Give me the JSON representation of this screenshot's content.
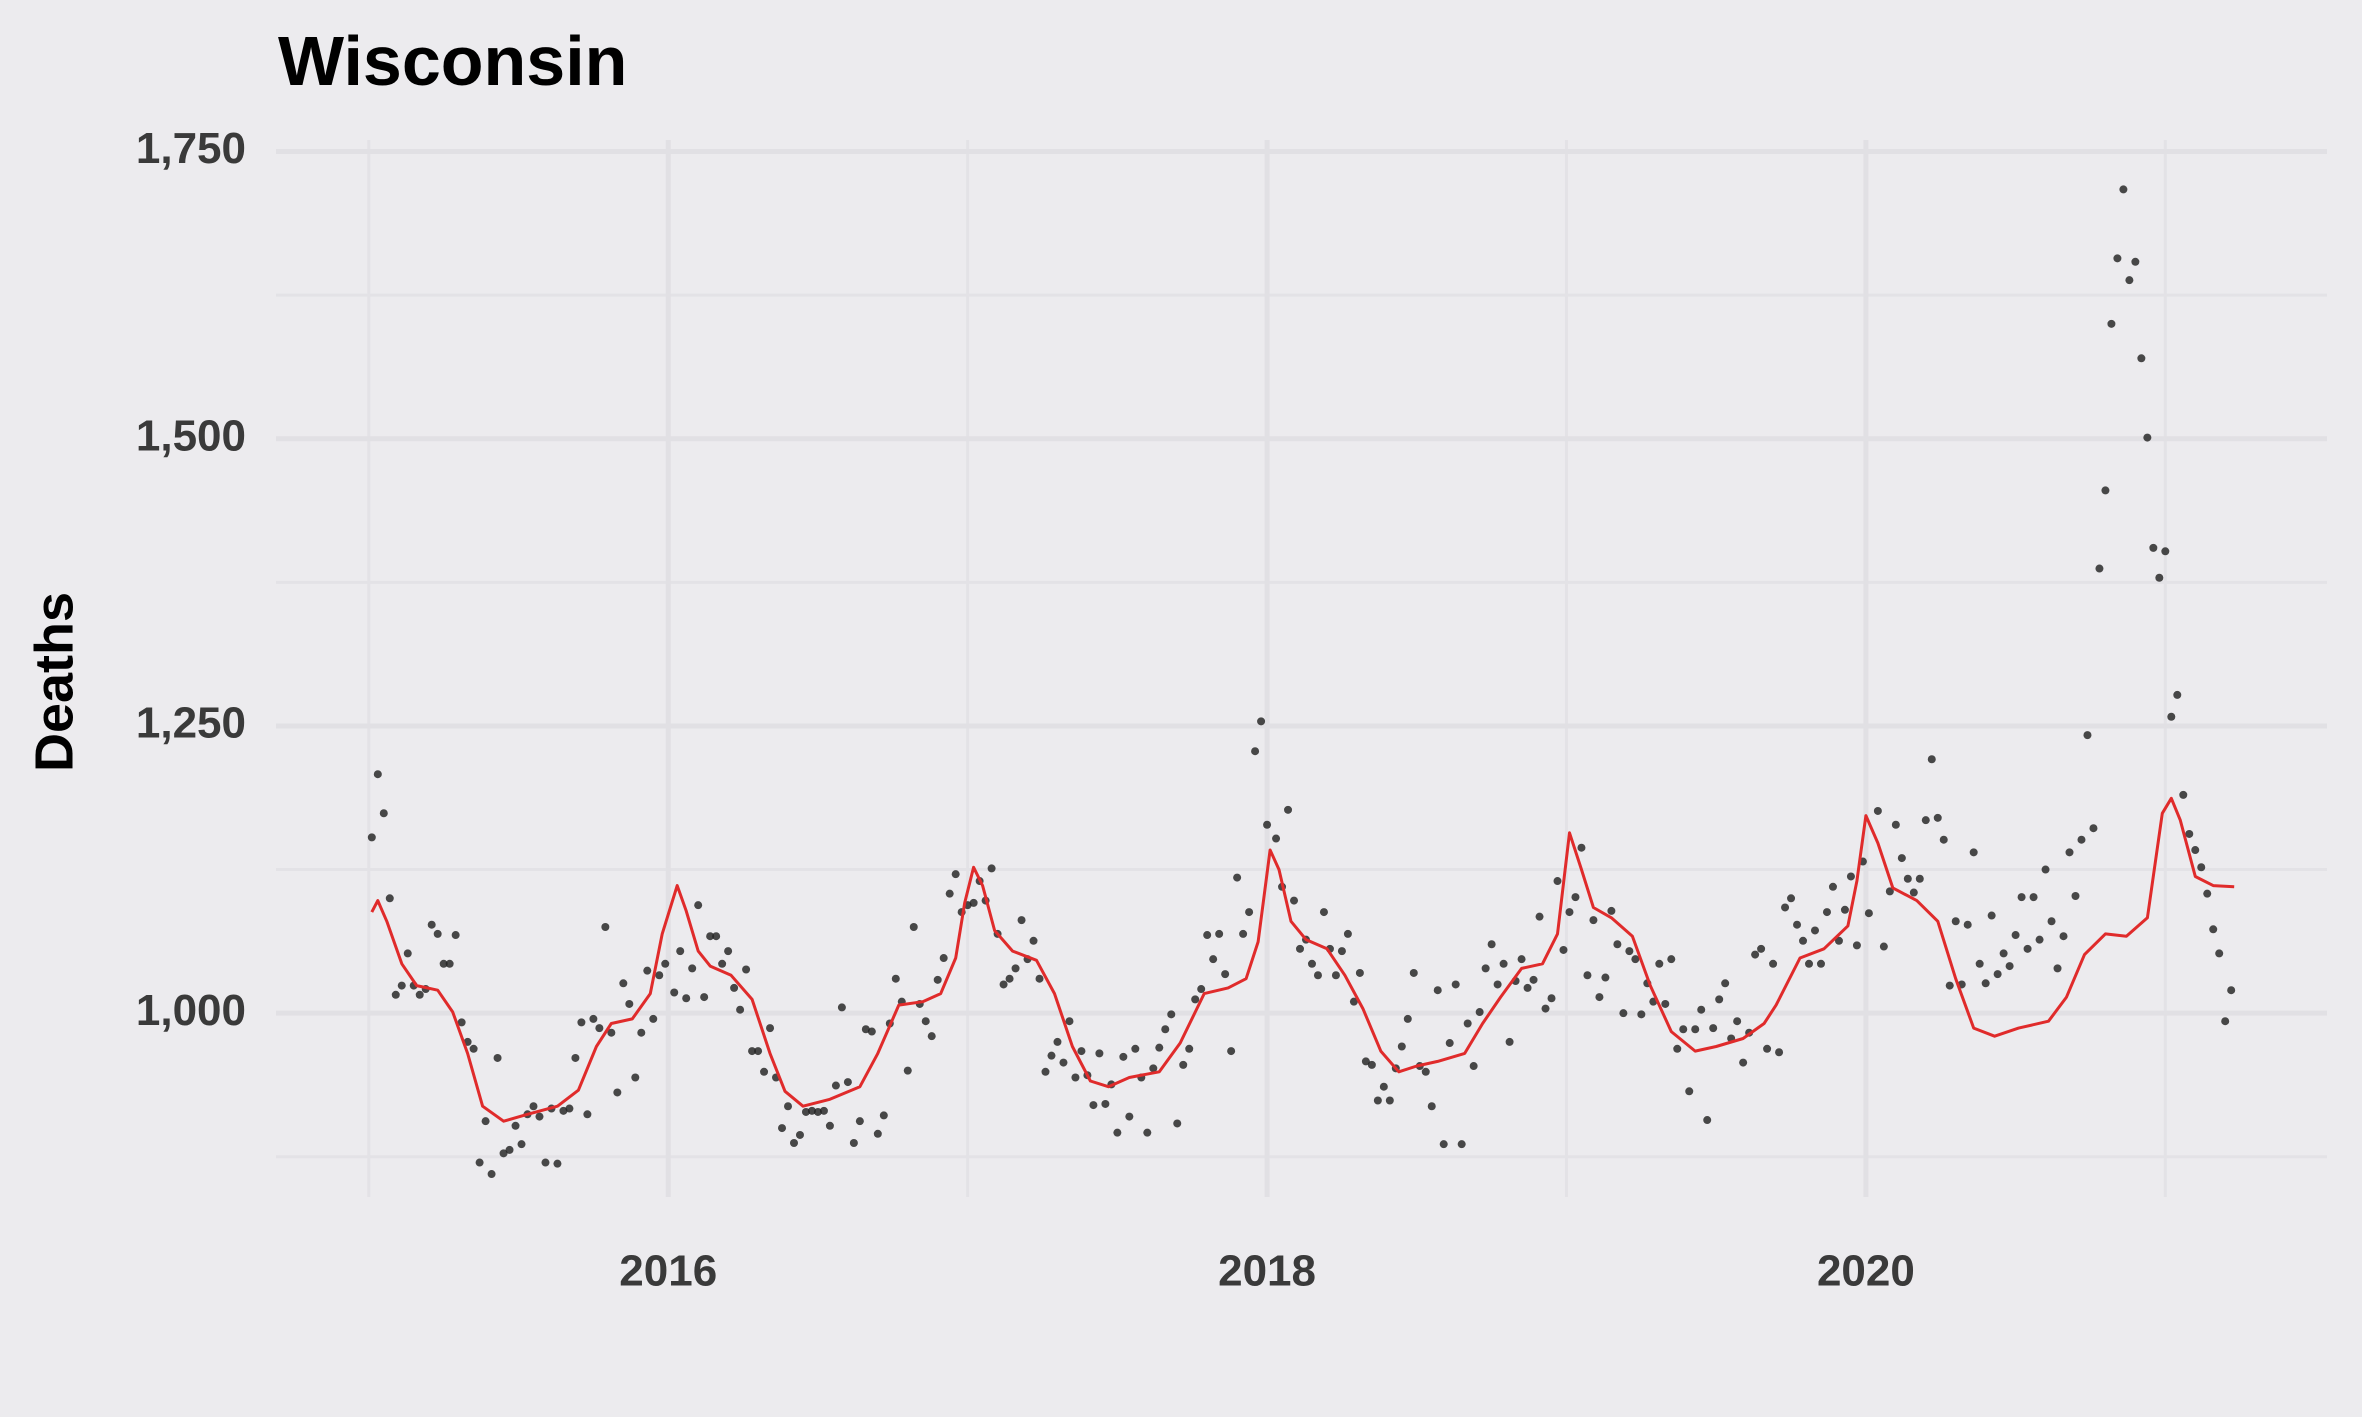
{
  "chart_data": {
    "type": "scatter",
    "title": "Wisconsin",
    "ylabel": "Deaths",
    "grid": true,
    "xlim": [
      2014.69,
      2021.54
    ],
    "xticks": [
      2016,
      2018,
      2020
    ],
    "ylim": [
      840,
      1760
    ],
    "yticks": [
      {
        "value": 1000,
        "label": "1,000"
      },
      {
        "value": 1250,
        "label": "1,250"
      },
      {
        "value": 1500,
        "label": "1,500"
      },
      {
        "value": 1750,
        "label": "1,750"
      }
    ],
    "series": [
      {
        "type": "scatter",
        "color": "#222222",
        "x": [
          2015.01,
          2015.03,
          2015.05,
          2015.07,
          2015.09,
          2015.11,
          2015.13,
          2015.15,
          2015.17,
          2015.19,
          2015.21,
          2015.23,
          2015.25,
          2015.27,
          2015.29,
          2015.31,
          2015.33,
          2015.35,
          2015.37,
          2015.39,
          2015.41,
          2015.43,
          2015.45,
          2015.47,
          2015.49,
          2015.51,
          2015.53,
          2015.55,
          2015.57,
          2015.59,
          2015.61,
          2015.63,
          2015.65,
          2015.67,
          2015.69,
          2015.71,
          2015.73,
          2015.75,
          2015.77,
          2015.79,
          2015.81,
          2015.83,
          2015.85,
          2015.87,
          2015.89,
          2015.91,
          2015.93,
          2015.95,
          2015.97,
          2015.99,
          2016.02,
          2016.04,
          2016.06,
          2016.08,
          2016.1,
          2016.12,
          2016.14,
          2016.16,
          2016.18,
          2016.2,
          2016.22,
          2016.24,
          2016.26,
          2016.28,
          2016.3,
          2016.32,
          2016.34,
          2016.36,
          2016.38,
          2016.4,
          2016.42,
          2016.44,
          2016.46,
          2016.48,
          2016.5,
          2016.52,
          2016.54,
          2016.56,
          2016.58,
          2016.6,
          2016.62,
          2016.64,
          2016.66,
          2016.68,
          2016.7,
          2016.72,
          2016.74,
          2016.76,
          2016.78,
          2016.8,
          2016.82,
          2016.84,
          2016.86,
          2016.88,
          2016.9,
          2016.92,
          2016.94,
          2016.96,
          2016.98,
          2017.0,
          2017.02,
          2017.04,
          2017.06,
          2017.08,
          2017.1,
          2017.12,
          2017.14,
          2017.16,
          2017.18,
          2017.2,
          2017.22,
          2017.24,
          2017.26,
          2017.28,
          2017.3,
          2017.32,
          2017.34,
          2017.36,
          2017.38,
          2017.4,
          2017.42,
          2017.44,
          2017.46,
          2017.48,
          2017.5,
          2017.52,
          2017.54,
          2017.56,
          2017.58,
          2017.6,
          2017.62,
          2017.64,
          2017.66,
          2017.68,
          2017.7,
          2017.72,
          2017.74,
          2017.76,
          2017.78,
          2017.8,
          2017.82,
          2017.84,
          2017.86,
          2017.88,
          2017.9,
          2017.92,
          2017.94,
          2017.96,
          2017.98,
          2018.0,
          2018.03,
          2018.05,
          2018.07,
          2018.09,
          2018.11,
          2018.13,
          2018.15,
          2018.17,
          2018.19,
          2018.21,
          2018.23,
          2018.25,
          2018.27,
          2018.29,
          2018.31,
          2018.33,
          2018.35,
          2018.37,
          2018.39,
          2018.41,
          2018.43,
          2018.45,
          2018.47,
          2018.49,
          2018.51,
          2018.53,
          2018.55,
          2018.57,
          2018.59,
          2018.61,
          2018.63,
          2018.65,
          2018.67,
          2018.69,
          2018.71,
          2018.73,
          2018.75,
          2018.77,
          2018.79,
          2018.81,
          2018.83,
          2018.85,
          2018.87,
          2018.89,
          2018.91,
          2018.93,
          2018.95,
          2018.97,
          2018.99,
          2019.01,
          2019.03,
          2019.05,
          2019.07,
          2019.09,
          2019.11,
          2019.13,
          2019.15,
          2019.17,
          2019.19,
          2019.21,
          2019.23,
          2019.25,
          2019.27,
          2019.29,
          2019.31,
          2019.33,
          2019.35,
          2019.37,
          2019.39,
          2019.41,
          2019.43,
          2019.45,
          2019.47,
          2019.49,
          2019.51,
          2019.53,
          2019.55,
          2019.57,
          2019.59,
          2019.61,
          2019.63,
          2019.65,
          2019.67,
          2019.69,
          2019.71,
          2019.73,
          2019.75,
          2019.77,
          2019.79,
          2019.81,
          2019.83,
          2019.85,
          2019.87,
          2019.89,
          2019.91,
          2019.93,
          2019.95,
          2019.97,
          2019.99,
          2020.01,
          2020.04,
          2020.06,
          2020.08,
          2020.1,
          2020.12,
          2020.14,
          2020.16,
          2020.18,
          2020.2,
          2020.22,
          2020.24,
          2020.26,
          2020.28,
          2020.3,
          2020.32,
          2020.34,
          2020.36,
          2020.38,
          2020.4,
          2020.42,
          2020.44,
          2020.46,
          2020.48,
          2020.5,
          2020.52,
          2020.54,
          2020.56,
          2020.58,
          2020.6,
          2020.62,
          2020.64,
          2020.66,
          2020.68,
          2020.7,
          2020.72,
          2020.74,
          2020.76,
          2020.78,
          2020.8,
          2020.82,
          2020.84,
          2020.86,
          2020.88,
          2020.9,
          2020.92,
          2020.94,
          2020.96,
          2020.98,
          2021.0,
          2021.02,
          2021.04,
          2021.06,
          2021.08,
          2021.1,
          2021.12,
          2021.14,
          2021.16,
          2021.18,
          2021.2,
          2021.22
        ],
        "values": [
          1153,
          1208,
          1174,
          1100,
          1016,
          1024,
          1052,
          1024,
          1016,
          1021,
          1077,
          1069,
          1043,
          1043,
          1068,
          992,
          975,
          969,
          870,
          906,
          860,
          961,
          878,
          881,
          902,
          886,
          912,
          919,
          910,
          870,
          917,
          869,
          915,
          917,
          961,
          992,
          912,
          995,
          987,
          1075,
          983,
          931,
          1026,
          1008,
          944,
          983,
          1037,
          995,
          1033,
          1043,
          1018,
          1054,
          1013,
          1039,
          1094,
          1014,
          1067,
          1067,
          1043,
          1054,
          1022,
          1003,
          1038,
          967,
          967,
          949,
          987,
          944,
          900,
          919,
          887,
          894,
          914,
          915,
          914,
          915,
          902,
          937,
          1005,
          940,
          887,
          906,
          986,
          984,
          895,
          911,
          991,
          1030,
          1010,
          950,
          1075,
          1008,
          993,
          980,
          1029,
          1048,
          1104,
          1121,
          1088,
          1094,
          1096,
          1115,
          1098,
          1126,
          1069,
          1025,
          1030,
          1039,
          1081,
          1047,
          1063,
          1030,
          949,
          963,
          975,
          957,
          993,
          944,
          967,
          946,
          920,
          965,
          921,
          938,
          896,
          962,
          910,
          969,
          944,
          896,
          952,
          970,
          986,
          999,
          904,
          955,
          969,
          1012,
          1021,
          1068,
          1047,
          1069,
          1034,
          967,
          1118,
          1069,
          1088,
          1228,
          1254,
          1164,
          1152,
          1110,
          1177,
          1098,
          1056,
          1064,
          1043,
          1033,
          1088,
          1056,
          1033,
          1054,
          1069,
          1010,
          1035,
          958,
          955,
          924,
          936,
          924,
          952,
          971,
          995,
          1035,
          954,
          949,
          919,
          1020,
          886,
          974,
          1025,
          886,
          991,
          954,
          1001,
          1039,
          1060,
          1025,
          1043,
          975,
          1028,
          1047,
          1022,
          1029,
          1084,
          1004,
          1013,
          1115,
          1055,
          1088,
          1101,
          1144,
          1033,
          1081,
          1014,
          1031,
          1089,
          1060,
          1000,
          1054,
          1047,
          999,
          1026,
          1010,
          1043,
          1008,
          1047,
          969,
          986,
          932,
          986,
          1003,
          907,
          987,
          1012,
          1026,
          978,
          993,
          957,
          983,
          1051,
          1056,
          969,
          1043,
          966,
          1092,
          1100,
          1077,
          1063,
          1043,
          1072,
          1043,
          1088,
          1110,
          1063,
          1090,
          1119,
          1059,
          1132,
          1087,
          1176,
          1058,
          1106,
          1164,
          1135,
          1117,
          1105,
          1117,
          1168,
          1221,
          1170,
          1151,
          1024,
          1080,
          1025,
          1077,
          1140,
          1043,
          1026,
          1085,
          1034,
          1052,
          1041,
          1068,
          1101,
          1056,
          1101,
          1064,
          1125,
          1080,
          1039,
          1067,
          1140,
          1102,
          1151,
          1242,
          1161,
          1387,
          1455,
          1600,
          1657,
          1717,
          1638,
          1654,
          1570,
          1501,
          1405,
          1379,
          1402,
          1258,
          1277,
          1190,
          1156,
          1142,
          1127,
          1104,
          1073,
          1052,
          993,
          1020
        ]
      },
      {
        "type": "line",
        "color": "#e02b2b",
        "x": [
          2015.01,
          2015.03,
          2015.06,
          2015.11,
          2015.16,
          2015.23,
          2015.28,
          2015.33,
          2015.38,
          2015.45,
          2015.53,
          2015.63,
          2015.7,
          2015.76,
          2015.81,
          2015.88,
          2015.94,
          2015.98,
          2016.03,
          2016.06,
          2016.1,
          2016.14,
          2016.21,
          2016.28,
          2016.34,
          2016.39,
          2016.45,
          2016.54,
          2016.64,
          2016.7,
          2016.77,
          2016.85,
          2016.91,
          2016.96,
          2016.99,
          2017.02,
          2017.05,
          2017.09,
          2017.15,
          2017.23,
          2017.29,
          2017.35,
          2017.41,
          2017.47,
          2017.54,
          2017.64,
          2017.71,
          2017.79,
          2017.87,
          2017.93,
          2017.97,
          2018.01,
          2018.04,
          2018.08,
          2018.13,
          2018.2,
          2018.26,
          2018.32,
          2018.38,
          2018.44,
          2018.5,
          2018.57,
          2018.66,
          2018.72,
          2018.78,
          2018.85,
          2018.92,
          2018.97,
          2019.01,
          2019.05,
          2019.09,
          2019.15,
          2019.22,
          2019.28,
          2019.35,
          2019.43,
          2019.5,
          2019.59,
          2019.66,
          2019.7,
          2019.78,
          2019.86,
          2019.94,
          2019.97,
          2020.0,
          2020.04,
          2020.09,
          2020.17,
          2020.24,
          2020.3,
          2020.36,
          2020.43,
          2020.51,
          2020.61,
          2020.67,
          2020.73,
          2020.8,
          2020.87,
          2020.94,
          2020.99,
          2021.02,
          2021.05,
          2021.1,
          2021.16,
          2021.23
        ],
        "values": [
          1088,
          1098,
          1080,
          1043,
          1024,
          1020,
          1001,
          965,
          919,
          906,
          912,
          919,
          933,
          971,
          991,
          995,
          1017,
          1069,
          1111,
          1089,
          1054,
          1041,
          1033,
          1012,
          965,
          932,
          919,
          925,
          936,
          965,
          1007,
          1010,
          1017,
          1048,
          1096,
          1127,
          1111,
          1072,
          1054,
          1046,
          1017,
          971,
          941,
          936,
          944,
          949,
          974,
          1017,
          1022,
          1030,
          1062,
          1142,
          1125,
          1080,
          1064,
          1056,
          1033,
          1004,
          967,
          949,
          954,
          958,
          965,
          991,
          1014,
          1039,
          1043,
          1069,
          1157,
          1125,
          1092,
          1083,
          1067,
          1024,
          984,
          967,
          971,
          978,
          991,
          1007,
          1048,
          1056,
          1076,
          1115,
          1172,
          1148,
          1109,
          1098,
          1080,
          1030,
          987,
          980,
          987,
          993,
          1014,
          1051,
          1069,
          1067,
          1083,
          1174,
          1187,
          1168,
          1119,
          1111,
          1110
        ]
      }
    ]
  }
}
